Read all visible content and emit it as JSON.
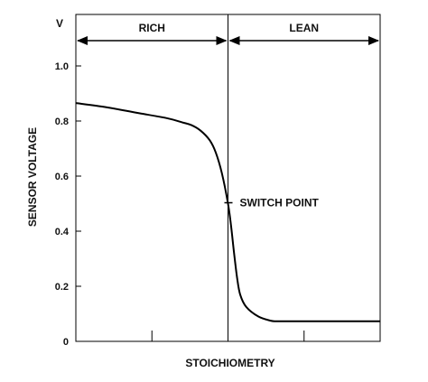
{
  "chart_data": {
    "type": "line",
    "title": "",
    "xlabel": "STOICHIOMETRY",
    "ylabel": "SENSOR VOLTAGE",
    "y_unit": "V",
    "ylim": [
      0,
      1.2
    ],
    "yticks": [
      "0",
      "0.2",
      "0.4",
      "0.6",
      "0.8",
      "1.0"
    ],
    "ytick_values": [
      0,
      0.2,
      0.4,
      0.6,
      0.8,
      1.0
    ],
    "xlim": [
      0,
      100
    ],
    "xticks": [
      25,
      50,
      75
    ],
    "grid": false,
    "regions": [
      {
        "label": "RICH",
        "from": 0,
        "to": 50
      },
      {
        "label": "LEAN",
        "from": 50,
        "to": 100
      }
    ],
    "annotation": {
      "label": "SWITCH POINT",
      "x": 50,
      "y": 0.5
    },
    "series": [
      {
        "x": [
          0,
          10,
          20,
          30,
          35,
          38,
          41,
          44,
          46,
          48,
          50,
          51,
          52,
          53,
          54,
          56,
          60,
          64,
          66,
          70,
          80,
          90,
          100
        ],
        "values": [
          0.865,
          0.85,
          0.83,
          0.81,
          0.795,
          0.785,
          0.765,
          0.73,
          0.685,
          0.61,
          0.5,
          0.42,
          0.32,
          0.23,
          0.17,
          0.125,
          0.09,
          0.075,
          0.073,
          0.073,
          0.073,
          0.073,
          0.073
        ]
      }
    ]
  }
}
